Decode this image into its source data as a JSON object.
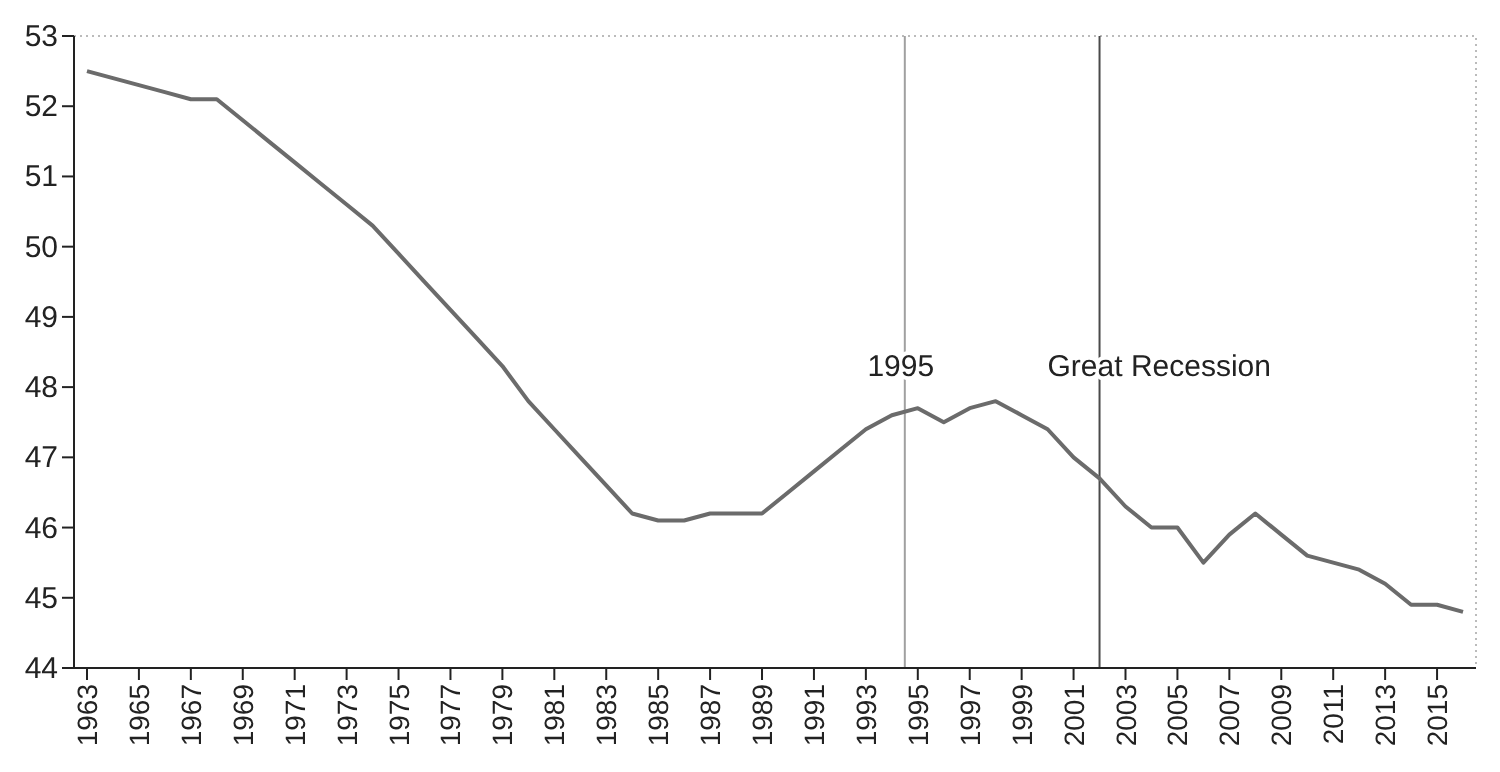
{
  "chart_data": {
    "type": "line",
    "x": [
      1963,
      1964,
      1965,
      1966,
      1967,
      1968,
      1969,
      1970,
      1971,
      1972,
      1973,
      1974,
      1975,
      1976,
      1977,
      1978,
      1979,
      1980,
      1981,
      1982,
      1983,
      1984,
      1985,
      1986,
      1987,
      1988,
      1989,
      1990,
      1991,
      1992,
      1993,
      1994,
      1995,
      1996,
      1997,
      1998,
      1999,
      2000,
      2001,
      2002,
      2003,
      2004,
      2005,
      2006,
      2007,
      2008,
      2009,
      2010,
      2011,
      2012,
      2013,
      2014,
      2015,
      2016
    ],
    "series": [
      {
        "color": "#6b6b6b",
        "values": [
          52.5,
          52.4,
          52.3,
          52.2,
          52.1,
          52.1,
          51.8,
          51.5,
          51.2,
          50.9,
          50.6,
          50.3,
          49.9,
          49.5,
          49.1,
          48.7,
          48.3,
          47.8,
          47.4,
          47.0,
          46.6,
          46.2,
          46.1,
          46.1,
          46.2,
          46.2,
          46.2,
          46.5,
          46.8,
          47.1,
          47.4,
          47.6,
          47.7,
          47.5,
          47.7,
          47.8,
          47.6,
          47.4,
          47.0,
          46.7,
          46.3,
          46.0,
          46.0,
          45.5,
          45.9,
          46.2,
          45.9,
          45.6,
          45.5,
          45.4,
          45.2,
          44.9,
          44.9,
          44.8
        ]
      }
    ],
    "xlim": [
      1962.5,
      2016.5
    ],
    "xticks": [
      1963,
      1965,
      1967,
      1969,
      1971,
      1973,
      1975,
      1977,
      1979,
      1981,
      1983,
      1985,
      1987,
      1989,
      1991,
      1993,
      1995,
      1997,
      1999,
      2001,
      2003,
      2005,
      2007,
      2009,
      2011,
      2013,
      2015
    ],
    "ylim": [
      44,
      53
    ],
    "yticks": [
      44,
      45,
      46,
      47,
      48,
      49,
      50,
      51,
      52,
      53
    ],
    "ref_lines": [
      {
        "axis": "x",
        "value": 1994.5,
        "label": "1995",
        "color": "#a0a0a0"
      },
      {
        "axis": "x",
        "value": 2002,
        "label": "Great Recession",
        "color": "#4a4a4a"
      }
    ],
    "grid": false,
    "marker": "none",
    "line_style": "solid"
  }
}
